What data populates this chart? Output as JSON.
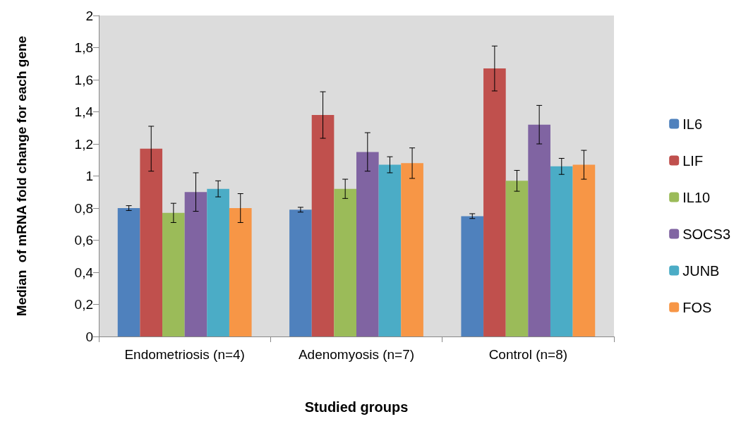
{
  "chart_data": {
    "type": "bar",
    "xlabel": "Studied groups",
    "ylabel": "Median  of mRNA fold change for each gene",
    "categories": [
      "Endometriosis (n=4)",
      "Adenomyosis (n=7)",
      "Control (n=8)"
    ],
    "series": [
      {
        "name": "IL6",
        "color": "#4f81bd",
        "values": [
          0.8,
          0.79,
          0.75
        ],
        "errors": [
          0.015,
          0.015,
          0.015
        ]
      },
      {
        "name": "LIF",
        "color": "#c0504d",
        "values": [
          1.17,
          1.38,
          1.67
        ],
        "errors": [
          0.14,
          0.145,
          0.14
        ]
      },
      {
        "name": "IL10",
        "color": "#9bbb59",
        "values": [
          0.77,
          0.92,
          0.97
        ],
        "errors": [
          0.06,
          0.06,
          0.065
        ]
      },
      {
        "name": "SOCS3",
        "color": "#8064a2",
        "values": [
          0.9,
          1.15,
          1.32
        ],
        "errors": [
          0.12,
          0.12,
          0.12
        ]
      },
      {
        "name": "JUNB",
        "color": "#4bacc6",
        "values": [
          0.92,
          1.07,
          1.06
        ],
        "errors": [
          0.05,
          0.05,
          0.05
        ]
      },
      {
        "name": "FOS",
        "color": "#f79646",
        "values": [
          0.8,
          1.08,
          1.07
        ],
        "errors": [
          0.09,
          0.095,
          0.09
        ]
      }
    ],
    "ylim": [
      0,
      2
    ],
    "yticks": [
      0,
      {
        "value": 0.2,
        "label": "0,2"
      },
      {
        "value": 0.4,
        "label": "0,4"
      },
      {
        "value": 0.6,
        "label": "0,6"
      },
      {
        "value": 0.8,
        "label": "0,8"
      },
      1,
      {
        "value": 1.2,
        "label": "1,2"
      },
      {
        "value": 1.4,
        "label": "1,4"
      },
      {
        "value": 1.6,
        "label": "1,6"
      },
      {
        "value": 1.8,
        "label": "1,8"
      },
      2
    ],
    "grid": false,
    "legend": "right"
  }
}
